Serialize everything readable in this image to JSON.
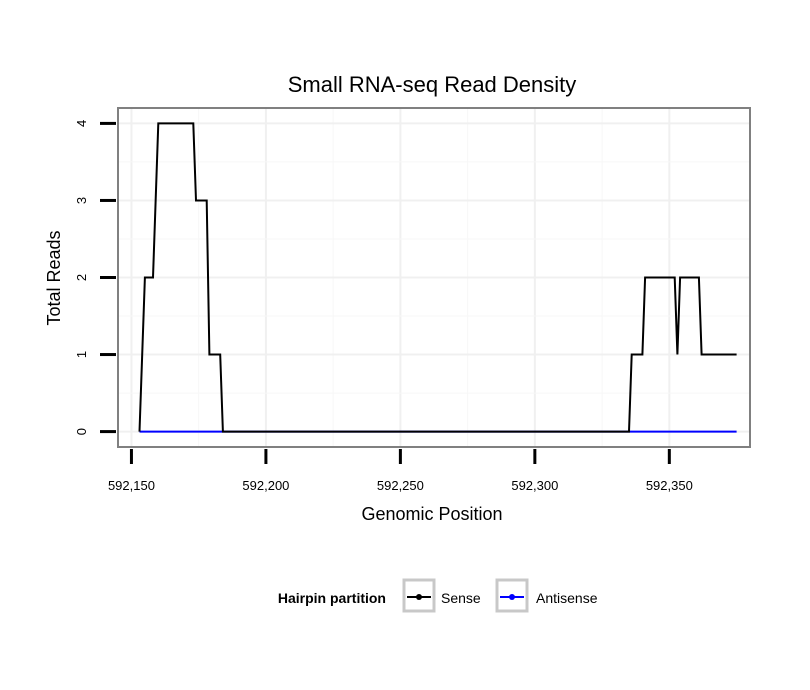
{
  "chart_data": {
    "type": "line",
    "title": "Small RNA-seq Read Density",
    "xlabel": "Genomic Position",
    "ylabel": "Total Reads",
    "xlim": [
      592145,
      592380
    ],
    "ylim": [
      -0.2,
      4.2
    ],
    "x_ticks": [
      592150,
      592200,
      592250,
      592300,
      592350
    ],
    "x_tick_labels": [
      "592,150",
      "592,200",
      "592,250",
      "592,300",
      "592,350"
    ],
    "y_ticks": [
      0,
      1,
      2,
      3,
      4
    ],
    "y_tick_labels": [
      "0",
      "1",
      "2",
      "3",
      "4"
    ],
    "grid": true,
    "legend": {
      "title": "Hairpin partition",
      "position": "bottom"
    },
    "series": [
      {
        "name": "Sense",
        "color": "#000000",
        "points": [
          [
            592153,
            0
          ],
          [
            592155,
            2
          ],
          [
            592158,
            2
          ],
          [
            592160,
            4
          ],
          [
            592167,
            4
          ],
          [
            592173,
            4
          ],
          [
            592174,
            3
          ],
          [
            592178,
            3
          ],
          [
            592179,
            1
          ],
          [
            592183,
            1
          ],
          [
            592184,
            0
          ],
          [
            592335,
            0
          ],
          [
            592336,
            1
          ],
          [
            592340,
            1
          ],
          [
            592341,
            2
          ],
          [
            592352,
            2
          ],
          [
            592353,
            1
          ],
          [
            592354,
            2
          ],
          [
            592361,
            2
          ],
          [
            592362,
            1
          ],
          [
            592375,
            1
          ]
        ]
      },
      {
        "name": "Antisense",
        "color": "#0000ff",
        "points": [
          [
            592153,
            0
          ],
          [
            592375,
            0
          ]
        ]
      }
    ]
  }
}
